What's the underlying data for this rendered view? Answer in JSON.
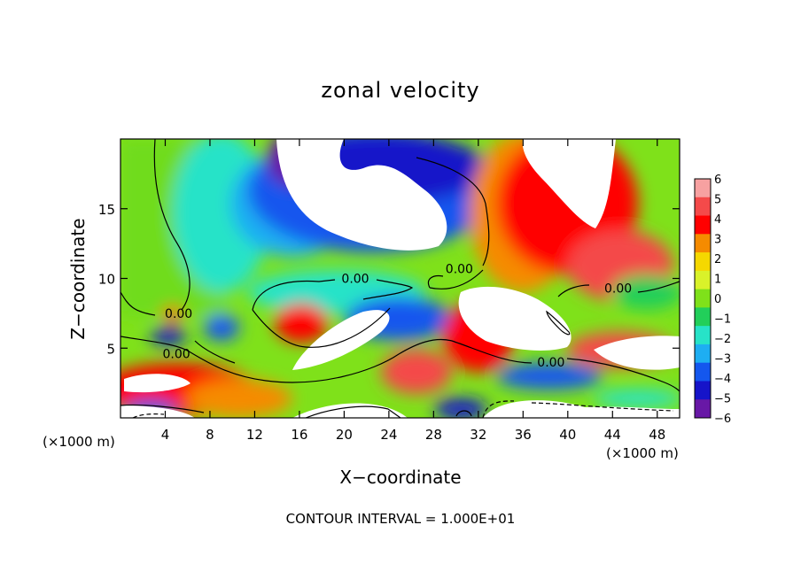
{
  "chart_data": {
    "type": "heatmap",
    "title": "zonal velocity",
    "xlabel": "X−coordinate",
    "ylabel": "Z−coordinate",
    "x_unit_left": "(×1000 m)",
    "x_unit_right": "(×1000 m)",
    "footer": "CONTOUR INTERVAL = 1.000E+01",
    "xlim": [
      0,
      50
    ],
    "ylim": [
      0,
      20
    ],
    "x_ticks": [
      "4",
      "8",
      "12",
      "16",
      "20",
      "24",
      "28",
      "32",
      "36",
      "40",
      "44",
      "48"
    ],
    "y_ticks": [
      "5",
      "10",
      "15"
    ],
    "colorbar": {
      "ticks": [
        "6",
        "5",
        "4",
        "3",
        "2",
        "1",
        "0",
        "−1",
        "−2",
        "−3",
        "−4",
        "−5",
        "−6"
      ],
      "range": [
        -6,
        6
      ],
      "colors": [
        "#f7a1a1",
        "#f44a4a",
        "#ff0000",
        "#f58b00",
        "#f5d800",
        "#d9f22a",
        "#7fe11a",
        "#22cf5a",
        "#27e3c8",
        "#1eaef2",
        "#1457ee",
        "#1614c9",
        "#6818a6"
      ]
    },
    "contour_labels": [
      {
        "text": "0.00",
        "x": 5.2,
        "y": 7.5
      },
      {
        "text": "0.00",
        "x": 5.0,
        "y": 4.6
      },
      {
        "text": "0.00",
        "x": 21.0,
        "y": 10.0
      },
      {
        "text": "0.00",
        "x": 30.3,
        "y": 10.7
      },
      {
        "text": "0.00",
        "x": 38.5,
        "y": 4.0
      },
      {
        "text": "0.00",
        "x": 44.5,
        "y": 9.3
      }
    ]
  }
}
